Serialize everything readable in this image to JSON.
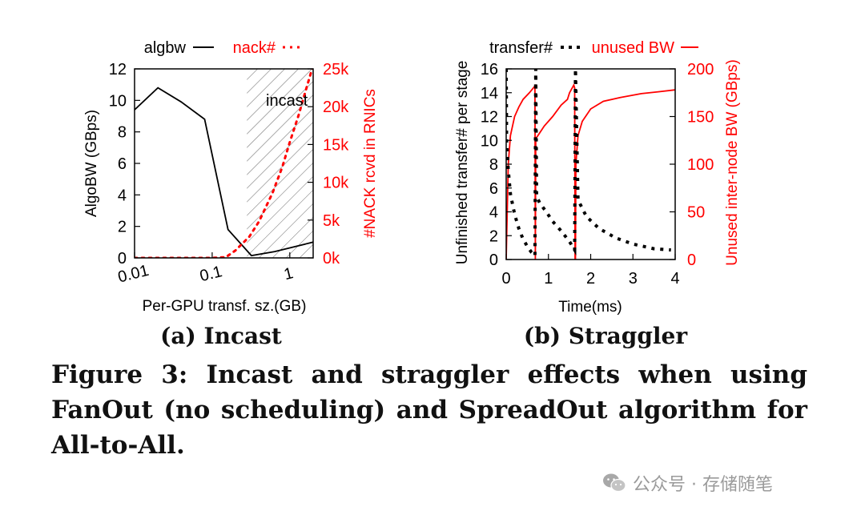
{
  "chart_data": [
    {
      "type": "line",
      "panel_title": "(a) Incast",
      "xlabel": "Per-GPU transf. sz.(GB)",
      "ylabel": "AlgoBW (GBps)",
      "y2label": "#NACK rcvd in RNICs",
      "xscale": "log",
      "xlim": [
        0.01,
        2
      ],
      "ylim": [
        0,
        12
      ],
      "y2lim": [
        0,
        25
      ],
      "x_ticks": [
        "0.01",
        "0.1",
        "1"
      ],
      "y_ticks": [
        "0",
        "2",
        "4",
        "6",
        "8",
        "10",
        "12"
      ],
      "y2_ticks": [
        "0k",
        "5k",
        "10k",
        "15k",
        "20k",
        "25k"
      ],
      "annotation": "incast",
      "incast_region_x": [
        0.28,
        2
      ],
      "legend": [
        {
          "label": "algbw",
          "style": "solid",
          "color": "#000000"
        },
        {
          "label": "nack#",
          "style": "dotted",
          "color": "#ff0000"
        }
      ],
      "series": [
        {
          "name": "algbw",
          "axis": "left",
          "x": [
            0.01,
            0.02,
            0.04,
            0.08,
            0.16,
            0.32,
            0.64,
            2
          ],
          "values": [
            9.4,
            10.8,
            9.9,
            8.8,
            1.8,
            0.15,
            0.4,
            1.0
          ]
        },
        {
          "name": "nack#",
          "axis": "right",
          "x": [
            0.01,
            0.1,
            0.15,
            0.2,
            0.3,
            0.4,
            0.6,
            0.8,
            1.0,
            1.3,
            1.6,
            2.0
          ],
          "values": [
            0,
            0,
            0.1,
            1.0,
            2.8,
            4.8,
            8.6,
            12.0,
            15.3,
            18.9,
            22.1,
            25.5
          ]
        }
      ]
    },
    {
      "type": "line",
      "panel_title": "(b) Straggler",
      "xlabel": "Time(ms)",
      "ylabel": "Unfinished transfer# per stage",
      "y2label": "Unused inter-node BW (GBps)",
      "xlim": [
        0,
        4
      ],
      "ylim": [
        0,
        16
      ],
      "y2lim": [
        0,
        200
      ],
      "x_ticks": [
        "0",
        "1",
        "2",
        "3",
        "4"
      ],
      "y_ticks": [
        "0",
        "2",
        "4",
        "6",
        "8",
        "10",
        "12",
        "14",
        "16"
      ],
      "y2_ticks": [
        "0",
        "50",
        "100",
        "150",
        "200"
      ],
      "legend": [
        {
          "label": "transfer#",
          "style": "dotted",
          "color": "#000000"
        },
        {
          "label": "unused BW",
          "style": "solid",
          "color": "#ff0000"
        }
      ],
      "series": [
        {
          "name": "transfer#",
          "axis": "left",
          "x": [
            0,
            0.01,
            0.05,
            0.1,
            0.2,
            0.3,
            0.4,
            0.5,
            0.6,
            0.68,
            0.7,
            0.72,
            0.8,
            0.95,
            1.1,
            1.3,
            1.5,
            1.62,
            1.64,
            1.7,
            1.9,
            2.2,
            2.6,
            3.0,
            3.5,
            3.9
          ],
          "values": [
            16,
            10,
            7.5,
            5.5,
            3.8,
            2.6,
            1.7,
            1.1,
            0.6,
            0.3,
            16,
            5.3,
            4.7,
            4.0,
            3.2,
            2.4,
            1.5,
            0.8,
            16,
            5.0,
            3.6,
            2.6,
            1.8,
            1.3,
            0.9,
            0.8
          ]
        },
        {
          "name": "unused BW",
          "axis": "right",
          "x": [
            0,
            0.05,
            0.1,
            0.2,
            0.3,
            0.4,
            0.55,
            0.68,
            0.69,
            0.7,
            0.75,
            0.9,
            1.1,
            1.3,
            1.45,
            1.5,
            1.6,
            1.62,
            1.63,
            1.64,
            1.65,
            1.7,
            1.8,
            2.0,
            2.3,
            2.7,
            3.2,
            3.6,
            4.0
          ],
          "values": [
            0,
            100,
            130,
            150,
            160,
            168,
            175,
            182,
            0,
            127,
            130,
            140,
            150,
            162,
            168,
            175,
            183,
            180,
            0,
            0,
            100,
            130,
            145,
            158,
            166,
            170,
            174,
            176,
            178
          ]
        }
      ]
    }
  ],
  "caption": "Figure 3: Incast and straggler effects when using FanOut (no scheduling) and SpreadOut algorithm for All-to-All.",
  "watermark": "公众号 · 存储随笔"
}
